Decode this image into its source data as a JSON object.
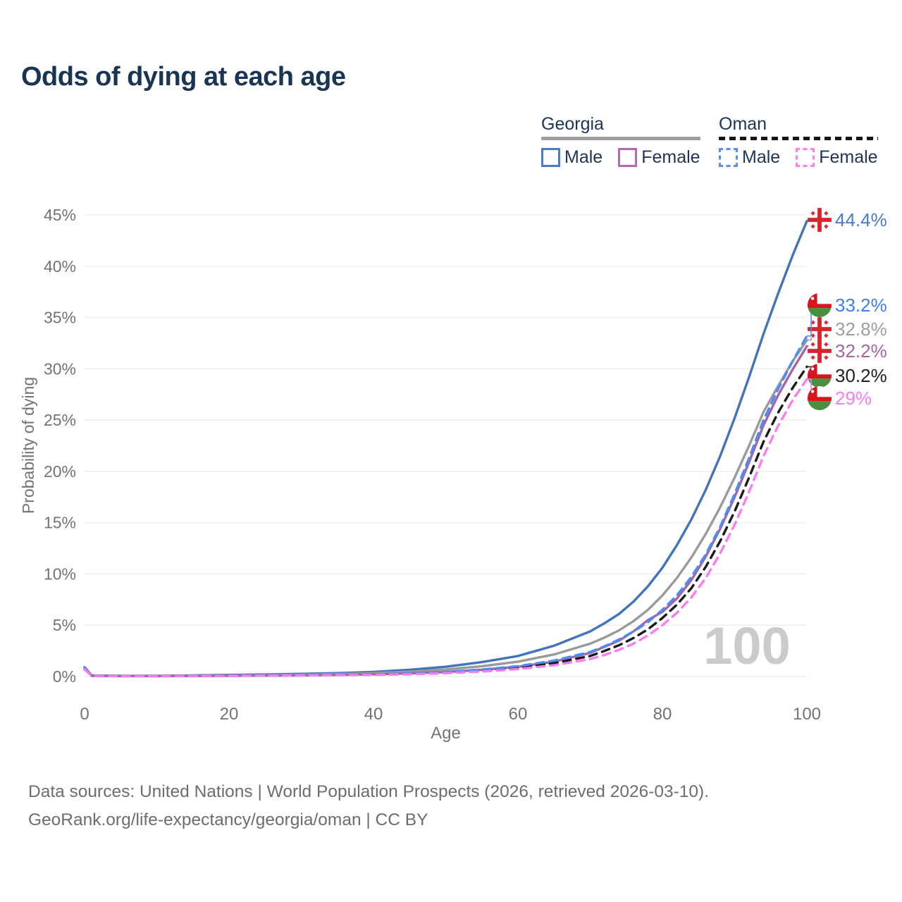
{
  "title": "Odds of dying at each age",
  "legend": {
    "groups": [
      {
        "name": "Georgia",
        "line_color": "#9e9e9e",
        "line_style": "solid",
        "items": [
          {
            "label": "Male",
            "swatch_color": "#4a7cc7",
            "style": "solid"
          },
          {
            "label": "Female",
            "swatch_color": "#b668b6",
            "style": "solid"
          }
        ]
      },
      {
        "name": "Oman",
        "line_color": "#161616",
        "line_style": "dashed",
        "items": [
          {
            "label": "Male",
            "swatch_color": "#5a8ff2",
            "style": "dashed"
          },
          {
            "label": "Female",
            "swatch_color": "#fc80f0",
            "style": "dashed"
          }
        ]
      }
    ]
  },
  "chart_data": {
    "type": "line",
    "title": "Odds of dying at each age",
    "xlabel": "Age",
    "ylabel": "Probability of dying",
    "xlim": [
      0,
      100
    ],
    "ylim": [
      0,
      45
    ],
    "x_ticks": [
      0,
      20,
      40,
      60,
      80,
      100
    ],
    "y_ticks": [
      "0%",
      "5%",
      "10%",
      "15%",
      "20%",
      "25%",
      "30%",
      "35%",
      "40%",
      "45%"
    ],
    "grid": "horizontal",
    "legend_position": "top-right",
    "watermark": "100",
    "ages": [
      0,
      1,
      5,
      10,
      15,
      20,
      25,
      30,
      35,
      40,
      45,
      50,
      55,
      60,
      65,
      70,
      72,
      74,
      76,
      78,
      80,
      82,
      84,
      86,
      88,
      90,
      92,
      94,
      96,
      98,
      100
    ],
    "series": [
      {
        "id": "georgia-male",
        "name": "Georgia Male",
        "country": "Georgia",
        "sex": "Male",
        "style": "solid",
        "color": "#4273bd",
        "flag": "georgia",
        "end_label": "44.4%",
        "end_value": 44.4,
        "label_color": "#4a7cc4",
        "values": [
          0.9,
          0.1,
          0.06,
          0.06,
          0.1,
          0.16,
          0.2,
          0.26,
          0.33,
          0.45,
          0.65,
          0.95,
          1.4,
          2.0,
          3.0,
          4.4,
          5.2,
          6.1,
          7.3,
          8.8,
          10.6,
          12.8,
          15.3,
          18.2,
          21.5,
          25.2,
          29.2,
          33.4,
          37.3,
          41.0,
          44.4
        ]
      },
      {
        "id": "georgia-total",
        "name": "Georgia (both sexes)",
        "country": "Georgia",
        "sex": "Both",
        "style": "solid",
        "color": "#9a9a9a",
        "flag": "georgia",
        "end_label": "32.8%",
        "end_value": 32.8,
        "label_color": "#9e9e9e",
        "values": [
          0.8,
          0.09,
          0.05,
          0.05,
          0.08,
          0.11,
          0.14,
          0.18,
          0.24,
          0.33,
          0.47,
          0.68,
          1.0,
          1.45,
          2.15,
          3.2,
          3.8,
          4.5,
          5.4,
          6.5,
          7.9,
          9.6,
          11.6,
          13.9,
          16.5,
          19.4,
          22.5,
          25.8,
          28.3,
          30.7,
          32.8
        ]
      },
      {
        "id": "georgia-female",
        "name": "Georgia Female",
        "country": "Georgia",
        "sex": "Female",
        "style": "solid",
        "color": "#a565a5",
        "flag": "georgia",
        "end_label": "32.2%",
        "end_value": 32.2,
        "label_color": "#a565a5",
        "values": [
          0.7,
          0.07,
          0.04,
          0.04,
          0.05,
          0.07,
          0.09,
          0.11,
          0.15,
          0.21,
          0.3,
          0.44,
          0.65,
          0.95,
          1.45,
          2.3,
          2.9,
          3.5,
          4.4,
          5.5,
          6.3,
          7.6,
          9.4,
          11.7,
          14.4,
          17.5,
          20.9,
          24.5,
          27.4,
          29.9,
          32.2
        ]
      },
      {
        "id": "oman-total",
        "name": "Oman (both sexes)",
        "country": "Oman",
        "sex": "Both",
        "style": "dashed",
        "color": "#1b1b1b",
        "flag": "oman",
        "end_label": "30.2%",
        "end_value": 30.2,
        "label_color": "#222222",
        "values": [
          0.75,
          0.07,
          0.04,
          0.04,
          0.05,
          0.08,
          0.1,
          0.12,
          0.15,
          0.19,
          0.26,
          0.38,
          0.57,
          0.85,
          1.3,
          2.0,
          2.5,
          3.05,
          3.75,
          4.6,
          5.7,
          7.0,
          8.6,
          10.7,
          13.2,
          16.1,
          19.4,
          22.9,
          25.7,
          28.1,
          30.2
        ]
      },
      {
        "id": "oman-male",
        "name": "Oman Male",
        "country": "Oman",
        "sex": "Male",
        "style": "dashed",
        "color": "#4d8bf5",
        "flag": "oman",
        "end_label": "33.2%",
        "end_value": 33.2,
        "label_color": "#3f7df2",
        "values": [
          0.8,
          0.08,
          0.04,
          0.04,
          0.06,
          0.09,
          0.11,
          0.14,
          0.17,
          0.22,
          0.3,
          0.45,
          0.68,
          1.0,
          1.55,
          2.4,
          2.95,
          3.6,
          4.4,
          5.3,
          6.5,
          7.9,
          9.7,
          11.9,
          14.6,
          17.8,
          21.3,
          25.0,
          28.0,
          30.7,
          33.2
        ]
      },
      {
        "id": "oman-female",
        "name": "Oman Female",
        "country": "Oman",
        "sex": "Female",
        "style": "dashed",
        "color": "#fb7bf0",
        "flag": "oman",
        "end_label": "29%",
        "end_value": 29.0,
        "label_color": "#fb7bf0",
        "values": [
          0.7,
          0.06,
          0.03,
          0.03,
          0.04,
          0.06,
          0.08,
          0.1,
          0.13,
          0.16,
          0.22,
          0.32,
          0.48,
          0.72,
          1.1,
          1.7,
          2.1,
          2.6,
          3.2,
          4.0,
          5.0,
          6.2,
          7.7,
          9.6,
          12.0,
          14.8,
          18.0,
          21.5,
          24.4,
          26.9,
          29.0
        ]
      }
    ],
    "flag_colors": {
      "georgia_red": "#d9232d",
      "oman_red": "#d8151d",
      "oman_green": "#4a8f3f"
    }
  },
  "footer": {
    "line1": "Data sources: United Nations | World Population Prospects (2026, retrieved 2026-03-10).",
    "line2": "GeoRank.org/life-expectancy/georgia/oman | CC BY"
  }
}
